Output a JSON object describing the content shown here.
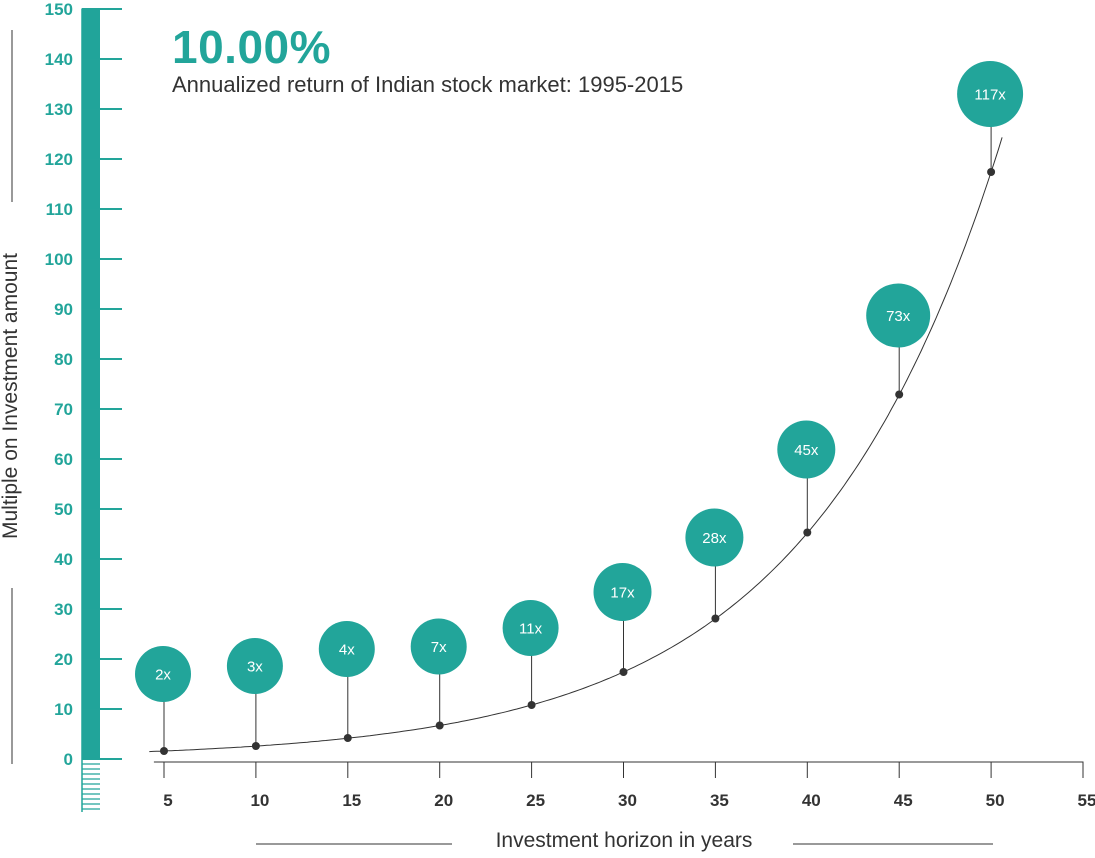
{
  "header": {
    "headline": "10.00%",
    "subtitle": "Annualized return of Indian stock market: 1995-2015"
  },
  "colors": {
    "accent": "#22a59a",
    "line": "#333333",
    "text": "#333333"
  },
  "chart_data": {
    "type": "line",
    "title": "10.00%",
    "subtitle": "Annualized return of Indian stock market: 1995-2015",
    "xlabel": "Investment horizon in years",
    "ylabel": "Multiple on Investment amount",
    "xlim": [
      5,
      55
    ],
    "ylim": [
      0,
      150
    ],
    "x_ticks": [
      5,
      10,
      15,
      20,
      25,
      30,
      35,
      40,
      45,
      50,
      55
    ],
    "y_ticks": [
      0,
      10,
      20,
      30,
      40,
      50,
      60,
      70,
      80,
      90,
      100,
      110,
      120,
      130,
      140,
      150
    ],
    "series": [
      {
        "x": [
          5,
          10,
          15,
          20,
          25,
          30,
          35,
          40,
          45,
          50
        ],
        "values": [
          1.6,
          2.6,
          4.2,
          6.7,
          10.8,
          17.4,
          28.1,
          45.3,
          72.9,
          117.4
        ],
        "labels": [
          "2x",
          "3x",
          "4x",
          "7x",
          "11x",
          "17x",
          "28x",
          "45x",
          "73x",
          "117x"
        ]
      }
    ],
    "grid": false
  }
}
